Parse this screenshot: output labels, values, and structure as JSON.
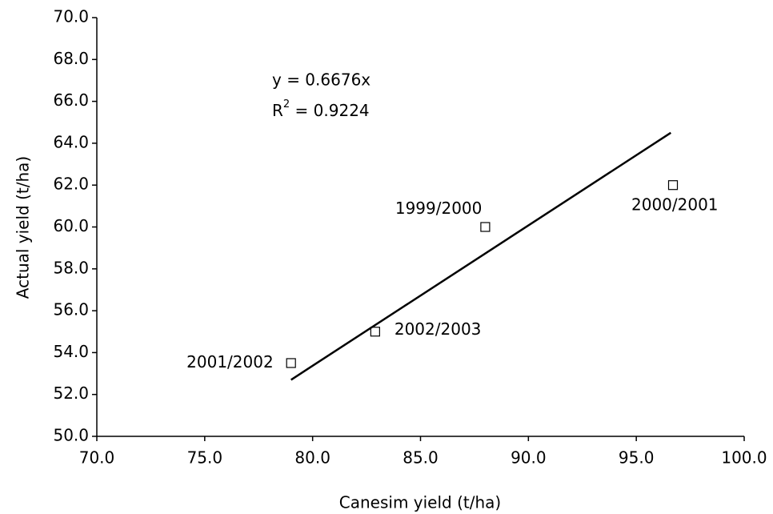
{
  "chart_data": {
    "type": "scatter",
    "xlabel": "Canesim yield (t/ha)",
    "ylabel": "Actual yield (t/ha)",
    "equation": "y = 0.6676x",
    "r_squared": {
      "base": "R",
      "superscript": "2",
      "text": " = 0.9224"
    },
    "series": [
      {
        "color": "#000000",
        "marker": "square",
        "x": [
          79.0,
          82.9,
          88.0,
          96.7
        ],
        "values": [
          53.5,
          55.0,
          60.0,
          62.0
        ],
        "labels": [
          "2001/2002",
          "2002/2003",
          "1999/2000",
          "2000/2001"
        ]
      },
      {
        "color": "#000000",
        "marker": "line",
        "x": [
          79.0,
          96.6
        ],
        "values": [
          52.7,
          64.5
        ]
      }
    ],
    "xlim": [
      70,
      100
    ],
    "xticks": [
      {
        "value": 70,
        "label": "70.0"
      },
      {
        "value": 75,
        "label": "75.0"
      },
      {
        "value": 80,
        "label": "80.0"
      },
      {
        "value": 85,
        "label": "85.0"
      },
      {
        "value": 90,
        "label": "90.0"
      },
      {
        "value": 95,
        "label": "95.0"
      },
      {
        "value": 100,
        "label": "100.0"
      }
    ],
    "ylim": [
      50,
      70
    ],
    "yticks": [
      {
        "value": 50,
        "label": "50.0"
      },
      {
        "value": 52,
        "label": "52.0"
      },
      {
        "value": 54,
        "label": "54.0"
      },
      {
        "value": 56,
        "label": "56.0"
      },
      {
        "value": 58,
        "label": "58.0"
      },
      {
        "value": 60,
        "label": "60.0"
      },
      {
        "value": 62,
        "label": "62.0"
      },
      {
        "value": 64,
        "label": "64.0"
      },
      {
        "value": 66,
        "label": "66.0"
      },
      {
        "value": 68,
        "label": "68.0"
      },
      {
        "value": 70,
        "label": "70.0"
      }
    ],
    "grid": false
  }
}
